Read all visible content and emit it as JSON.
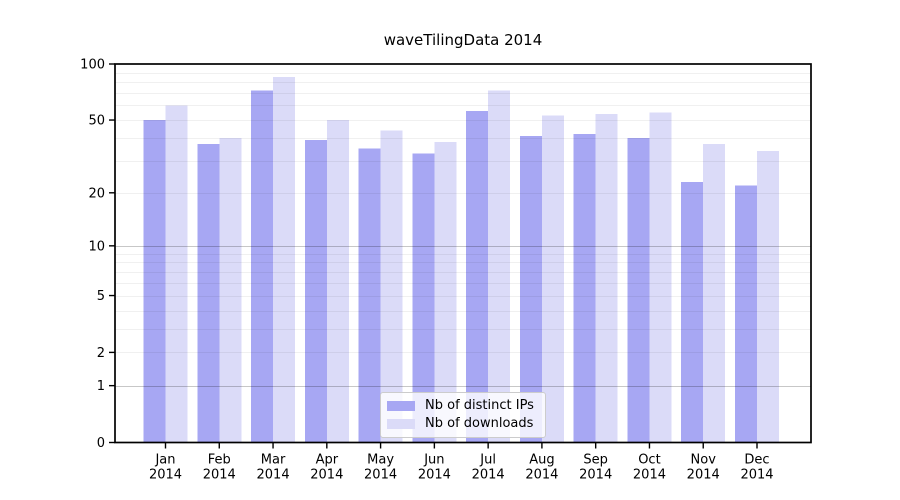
{
  "chart_data": {
    "type": "bar",
    "title": "waveTilingData 2014",
    "categories": [
      "Jan",
      "Feb",
      "Mar",
      "Apr",
      "May",
      "Jun",
      "Jul",
      "Aug",
      "Sep",
      "Oct",
      "Nov",
      "Dec"
    ],
    "category_sublabel": "2014",
    "series": [
      {
        "name": "Nb of distinct IPs",
        "color": "#a7a7f3",
        "values": [
          50,
          37,
          72,
          39,
          35,
          33,
          56,
          41,
          42,
          40,
          23,
          22
        ]
      },
      {
        "name": "Nb of downloads",
        "color": "#dbdbf8",
        "values": [
          60,
          40,
          85,
          50,
          44,
          38,
          72,
          53,
          54,
          55,
          37,
          34
        ]
      }
    ],
    "yscale": "log1p",
    "ylim": [
      0,
      100
    ],
    "yticks": [
      0,
      1,
      2,
      5,
      10,
      20,
      50,
      100
    ],
    "grid_major": [
      1,
      10
    ],
    "grid_minor": [
      2,
      3,
      4,
      5,
      6,
      7,
      8,
      9,
      20,
      30,
      40,
      50,
      60,
      70,
      80,
      90
    ],
    "xlabel": "",
    "ylabel": "",
    "legend_position": "lower center"
  },
  "colors": {
    "frame": "#000000",
    "tick": "#000000",
    "grid_minor": "#000000",
    "grid_major": "#000000",
    "background": "#ffffff"
  }
}
